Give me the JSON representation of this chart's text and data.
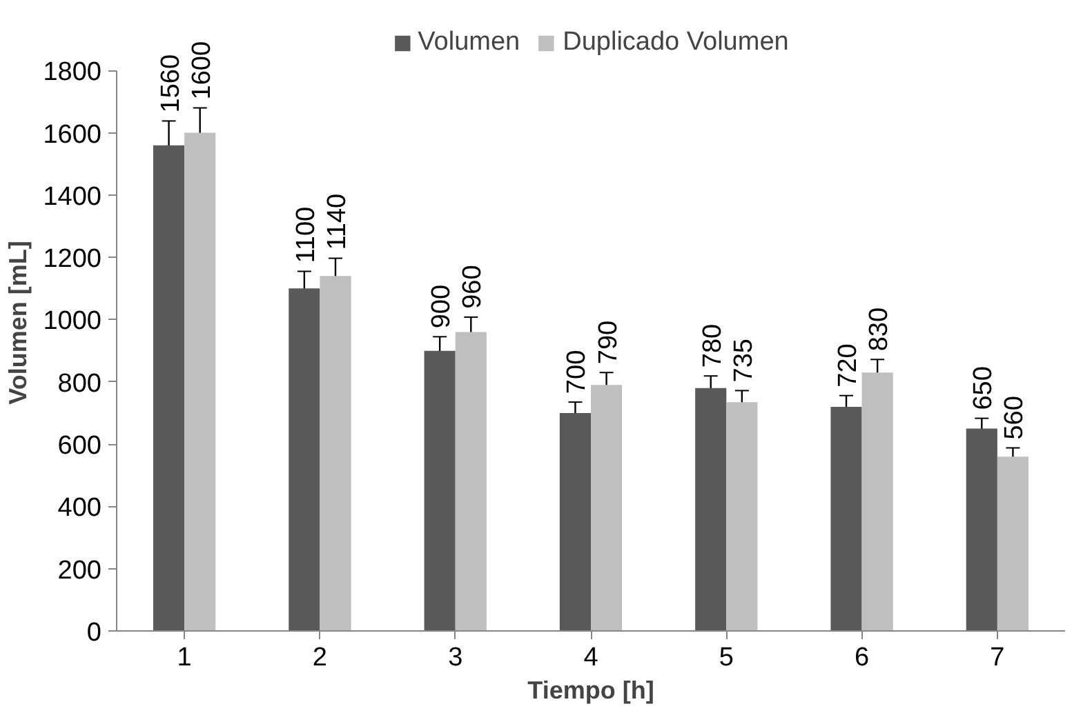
{
  "chart_data": {
    "type": "bar",
    "xlabel": "Tiempo [h]",
    "ylabel": "Volumen [mL]",
    "categories": [
      "1",
      "2",
      "3",
      "4",
      "5",
      "6",
      "7"
    ],
    "series": [
      {
        "name": "Volumen",
        "color": "#595959",
        "values": [
          1560,
          1100,
          900,
          700,
          780,
          720,
          650
        ],
        "errors": [
          78,
          55,
          45,
          35,
          39,
          36,
          33
        ]
      },
      {
        "name": "Duplicado Volumen",
        "color": "#bfbfbf",
        "values": [
          1600,
          1140,
          960,
          790,
          735,
          830,
          560
        ],
        "errors": [
          80,
          57,
          48,
          40,
          37,
          42,
          28
        ]
      }
    ],
    "ylim": [
      0,
      1800
    ],
    "yticks": [
      0,
      200,
      400,
      600,
      800,
      1000,
      1200,
      1400,
      1600,
      1800
    ],
    "data_labels": true,
    "legend": "top",
    "grid": false
  }
}
